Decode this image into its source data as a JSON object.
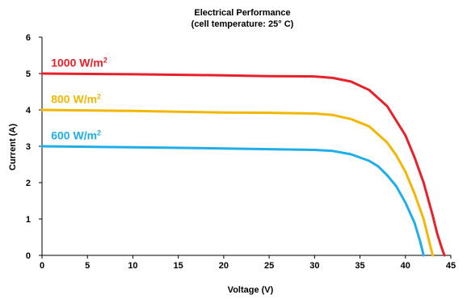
{
  "chart_data": {
    "type": "line",
    "title": "Electrical Performance",
    "subtitle": "(cell temperature: 25° C)",
    "xlabel": "Voltage (V)",
    "ylabel": "Current (A)",
    "xlim": [
      0,
      45
    ],
    "ylim": [
      0,
      6
    ],
    "xticks": [
      "0",
      "5",
      "10",
      "15",
      "20",
      "25",
      "30",
      "35",
      "40",
      "45"
    ],
    "yticks": [
      "0",
      "1",
      "2",
      "3",
      "4",
      "5",
      "6"
    ],
    "grid": false,
    "series": [
      {
        "name": "1000 W/m²",
        "color": "#e8202a",
        "x": [
          0,
          10,
          20,
          25,
          30,
          32,
          34,
          36,
          38,
          40,
          41,
          42,
          43,
          43.5,
          44,
          44.3
        ],
        "y": [
          5.0,
          4.98,
          4.95,
          4.93,
          4.92,
          4.88,
          4.78,
          4.55,
          4.1,
          3.3,
          2.7,
          2.0,
          1.1,
          0.6,
          0.2,
          0
        ]
      },
      {
        "name": "800 W/m²",
        "color": "#f2b705",
        "x": [
          0,
          10,
          20,
          25,
          30,
          32,
          34,
          36,
          38,
          39,
          40,
          41,
          42,
          42.5,
          43
        ],
        "y": [
          4.0,
          3.97,
          3.93,
          3.92,
          3.9,
          3.86,
          3.75,
          3.55,
          3.1,
          2.75,
          2.3,
          1.7,
          1.0,
          0.5,
          0
        ]
      },
      {
        "name": "600 W/m²",
        "color": "#1faee8",
        "x": [
          0,
          10,
          20,
          25,
          30,
          32,
          34,
          36,
          37,
          38,
          39,
          40,
          41,
          41.6,
          42
        ],
        "y": [
          3.0,
          2.97,
          2.94,
          2.92,
          2.9,
          2.87,
          2.78,
          2.6,
          2.45,
          2.2,
          1.9,
          1.45,
          0.9,
          0.4,
          0
        ]
      }
    ],
    "series_labels": [
      {
        "text": "1000 W/m",
        "sup": "2",
        "color": "#e8202a",
        "x": 1.0,
        "y": 5.3
      },
      {
        "text": "800 W/m",
        "sup": "2",
        "color": "#f2b705",
        "x": 1.0,
        "y": 4.3
      },
      {
        "text": "600 W/m",
        "sup": "2",
        "color": "#1faee8",
        "x": 1.0,
        "y": 3.3
      }
    ]
  }
}
